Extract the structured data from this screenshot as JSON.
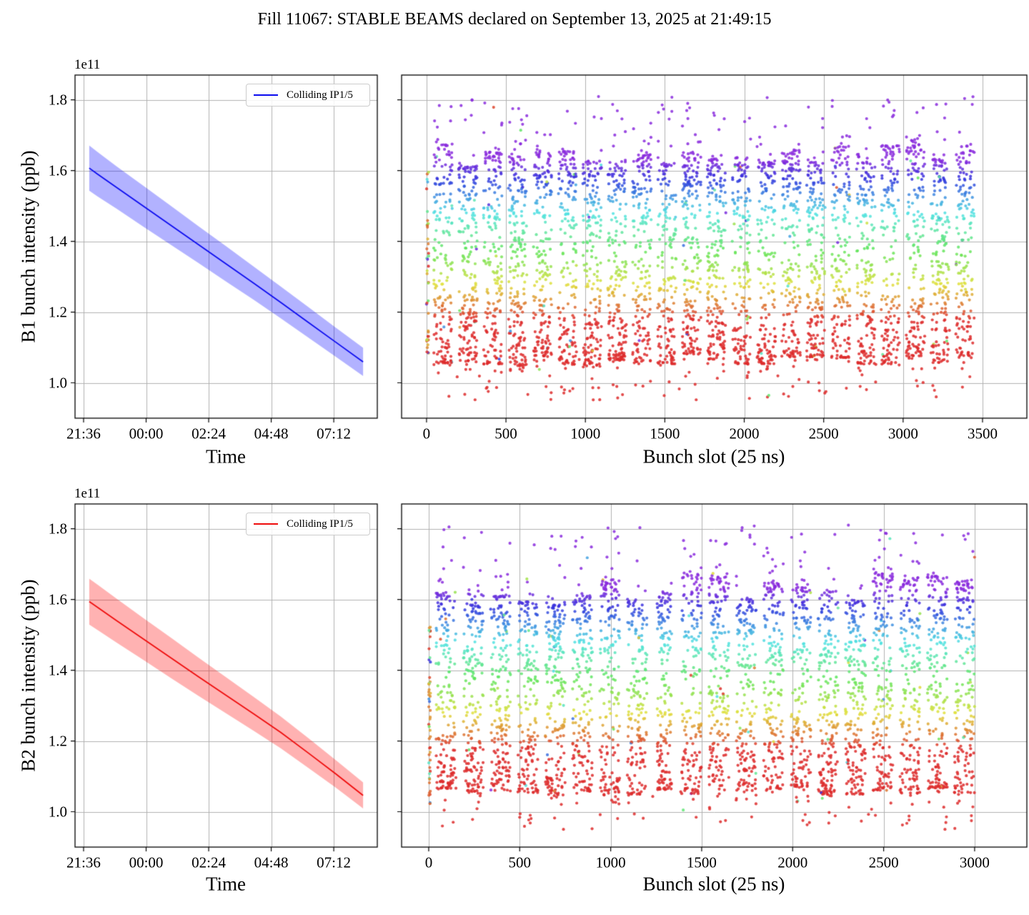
{
  "title": "Fill 11067: STABLE BEAMS declared on September 13, 2025 at 21:49:15",
  "style": {
    "background": "#ffffff",
    "grid_color": "#b0b0b0",
    "spine_color": "#000000",
    "legend_border": "#cccccc",
    "b1_color": "#0b0bef",
    "b1_band_color": "rgba(0,0,255,0.30)",
    "b2_color": "#ee0b0b",
    "b2_band_color": "rgba(255,0,0,0.30)"
  },
  "chart_data": [
    {
      "id": "b1-intensity-vs-time",
      "type": "line",
      "xlabel": "Time",
      "ylabel": "B1 bunch intensity (ppb)",
      "offset_text": "1e11",
      "legend_label": "Colliding IP1/5",
      "legend_position": "upper right",
      "line_color": "#0b0bef",
      "band_color": "rgba(0,0,255,0.30)",
      "x_tick_labels": [
        "21:36",
        "00:00",
        "02:24",
        "04:48",
        "07:12"
      ],
      "x_tick_minutes": [
        0,
        144,
        288,
        432,
        576
      ],
      "xlim_minutes": [
        -19.7,
        676.2
      ],
      "y_tick_labels": [
        "1.0",
        "1.2",
        "1.4",
        "1.6",
        "1.8"
      ],
      "y_ticks": [
        1.0,
        1.2,
        1.4,
        1.6,
        1.8
      ],
      "ylim": [
        0.9,
        1.87
      ],
      "grid": true,
      "t_start_minute": 13,
      "t_end_minute": 643.5,
      "t_frac": [
        0,
        0.03,
        0.1,
        0.2,
        0.3,
        0.4,
        0.5,
        0.6,
        0.7,
        0.8,
        0.9,
        1.0
      ],
      "mean": [
        1.607,
        1.59,
        1.552,
        1.498,
        1.444,
        1.39,
        1.336,
        1.282,
        1.227,
        1.171,
        1.115,
        1.059
      ],
      "band_half_width": [
        0.064,
        0.063,
        0.06,
        0.058,
        0.055,
        0.052,
        0.05,
        0.047,
        0.045,
        0.043,
        0.041,
        0.04
      ],
      "units": "1e11 ppb"
    },
    {
      "id": "b1-bunch-intensity-vs-slot",
      "type": "scatter",
      "xlabel": "Bunch slot (25 ns)",
      "x_tick_labels": [
        "0",
        "500",
        "1000",
        "1500",
        "2000",
        "2500",
        "3000",
        "3500"
      ],
      "x_ticks": [
        0,
        500,
        1000,
        1500,
        2000,
        2500,
        3000,
        3500
      ],
      "xlim": [
        -157,
        3779
      ],
      "ylim": [
        0.9,
        1.87
      ],
      "y_ticks": [
        1.0,
        1.2,
        1.4,
        1.6,
        1.8
      ],
      "grid": true,
      "marker": {
        "radius": 2.1,
        "alpha": 0.85
      },
      "color_map": {
        "type": "rainbow-by-intensity",
        "low_color": "red",
        "high_color": "purple",
        "value_range": [
          1.18,
          1.63
        ],
        "hue_deg": [
          0,
          272
        ]
      },
      "trains": [
        [
          45,
          117
        ],
        [
          202,
          117
        ],
        [
          358,
          117
        ],
        [
          515,
          117
        ],
        [
          671,
          117
        ],
        [
          828,
          117
        ],
        [
          984,
          117
        ],
        [
          1141,
          117
        ],
        [
          1297,
          117
        ],
        [
          1454,
          117
        ],
        [
          1610,
          117
        ],
        [
          1767,
          117
        ],
        [
          1923,
          117
        ],
        [
          2080,
          117
        ],
        [
          2236,
          117
        ],
        [
          2393,
          117
        ],
        [
          2549,
          117
        ],
        [
          2706,
          117
        ],
        [
          2862,
          117
        ],
        [
          3019,
          117
        ],
        [
          3175,
          117
        ],
        [
          3332,
          117
        ]
      ],
      "points_per_train": 190,
      "train_top_range": [
        1.585,
        1.675
      ],
      "train_bottom_range": [
        1.045,
        1.08
      ],
      "spike_max": 1.81,
      "low_min": 0.95,
      "stray_low_count": 25,
      "pilot": {
        "slot_range": [
          0,
          14
        ],
        "count": 40,
        "y_range": [
          1.08,
          1.6
        ]
      },
      "seed": 12345
    },
    {
      "id": "b2-intensity-vs-time",
      "type": "line",
      "xlabel": "Time",
      "ylabel": "B2 bunch intensity (ppb)",
      "offset_text": "1e11",
      "legend_label": "Colliding IP1/5",
      "legend_position": "upper right",
      "line_color": "#ee0b0b",
      "band_color": "rgba(255,0,0,0.30)",
      "x_tick_labels": [
        "21:36",
        "00:00",
        "02:24",
        "04:48",
        "07:12"
      ],
      "x_tick_minutes": [
        0,
        144,
        288,
        432,
        576
      ],
      "xlim_minutes": [
        -19.7,
        676.2
      ],
      "y_tick_labels": [
        "1.0",
        "1.2",
        "1.4",
        "1.6",
        "1.8"
      ],
      "y_ticks": [
        1.0,
        1.2,
        1.4,
        1.6,
        1.8
      ],
      "ylim": [
        0.9,
        1.87
      ],
      "grid": true,
      "t_start_minute": 13,
      "t_end_minute": 643.5,
      "t_frac": [
        0,
        0.03,
        0.1,
        0.2,
        0.3,
        0.4,
        0.5,
        0.6,
        0.7,
        0.8,
        0.9,
        1.0
      ],
      "mean": [
        1.594,
        1.578,
        1.54,
        1.487,
        1.434,
        1.381,
        1.329,
        1.277,
        1.224,
        1.166,
        1.107,
        1.046
      ],
      "band_half_width": [
        0.065,
        0.064,
        0.062,
        0.059,
        0.057,
        0.054,
        0.051,
        0.048,
        0.045,
        0.042,
        0.039,
        0.037
      ],
      "units": "1e11 ppb"
    },
    {
      "id": "b2-bunch-intensity-vs-slot",
      "type": "scatter",
      "xlabel": "Bunch slot (25 ns)",
      "x_tick_labels": [
        "0",
        "500",
        "1000",
        "1500",
        "2000",
        "2500",
        "3000"
      ],
      "x_ticks": [
        0,
        500,
        1000,
        1500,
        2000,
        2500,
        3000
      ],
      "xlim": [
        -149,
        3287
      ],
      "ylim": [
        0.9,
        1.87
      ],
      "y_ticks": [
        1.0,
        1.2,
        1.4,
        1.6,
        1.8
      ],
      "grid": true,
      "marker": {
        "radius": 2.1,
        "alpha": 0.85
      },
      "color_map": {
        "type": "rainbow-by-intensity",
        "low_color": "red",
        "high_color": "purple",
        "value_range": [
          1.18,
          1.63
        ],
        "hue_deg": [
          0,
          272
        ]
      },
      "trains": [
        [
          40,
          110
        ],
        [
          190,
          110
        ],
        [
          340,
          110
        ],
        [
          490,
          110
        ],
        [
          640,
          110
        ],
        [
          790,
          110
        ],
        [
          940,
          110
        ],
        [
          1090,
          110
        ],
        [
          1255,
          80
        ],
        [
          1390,
          110
        ],
        [
          1540,
          110
        ],
        [
          1690,
          110
        ],
        [
          1840,
          110
        ],
        [
          1990,
          110
        ],
        [
          2140,
          110
        ],
        [
          2290,
          110
        ],
        [
          2440,
          110
        ],
        [
          2590,
          110
        ],
        [
          2740,
          110
        ],
        [
          2890,
          110
        ]
      ],
      "points_per_train": 195,
      "train_top_range": [
        1.585,
        1.675
      ],
      "train_bottom_range": [
        1.045,
        1.08
      ],
      "spike_max": 1.81,
      "low_min": 0.95,
      "stray_low_count": 25,
      "pilot": {
        "slot_range": [
          0,
          10
        ],
        "count": 50,
        "y_range": [
          1.02,
          1.53
        ]
      },
      "seed": 67890
    }
  ]
}
